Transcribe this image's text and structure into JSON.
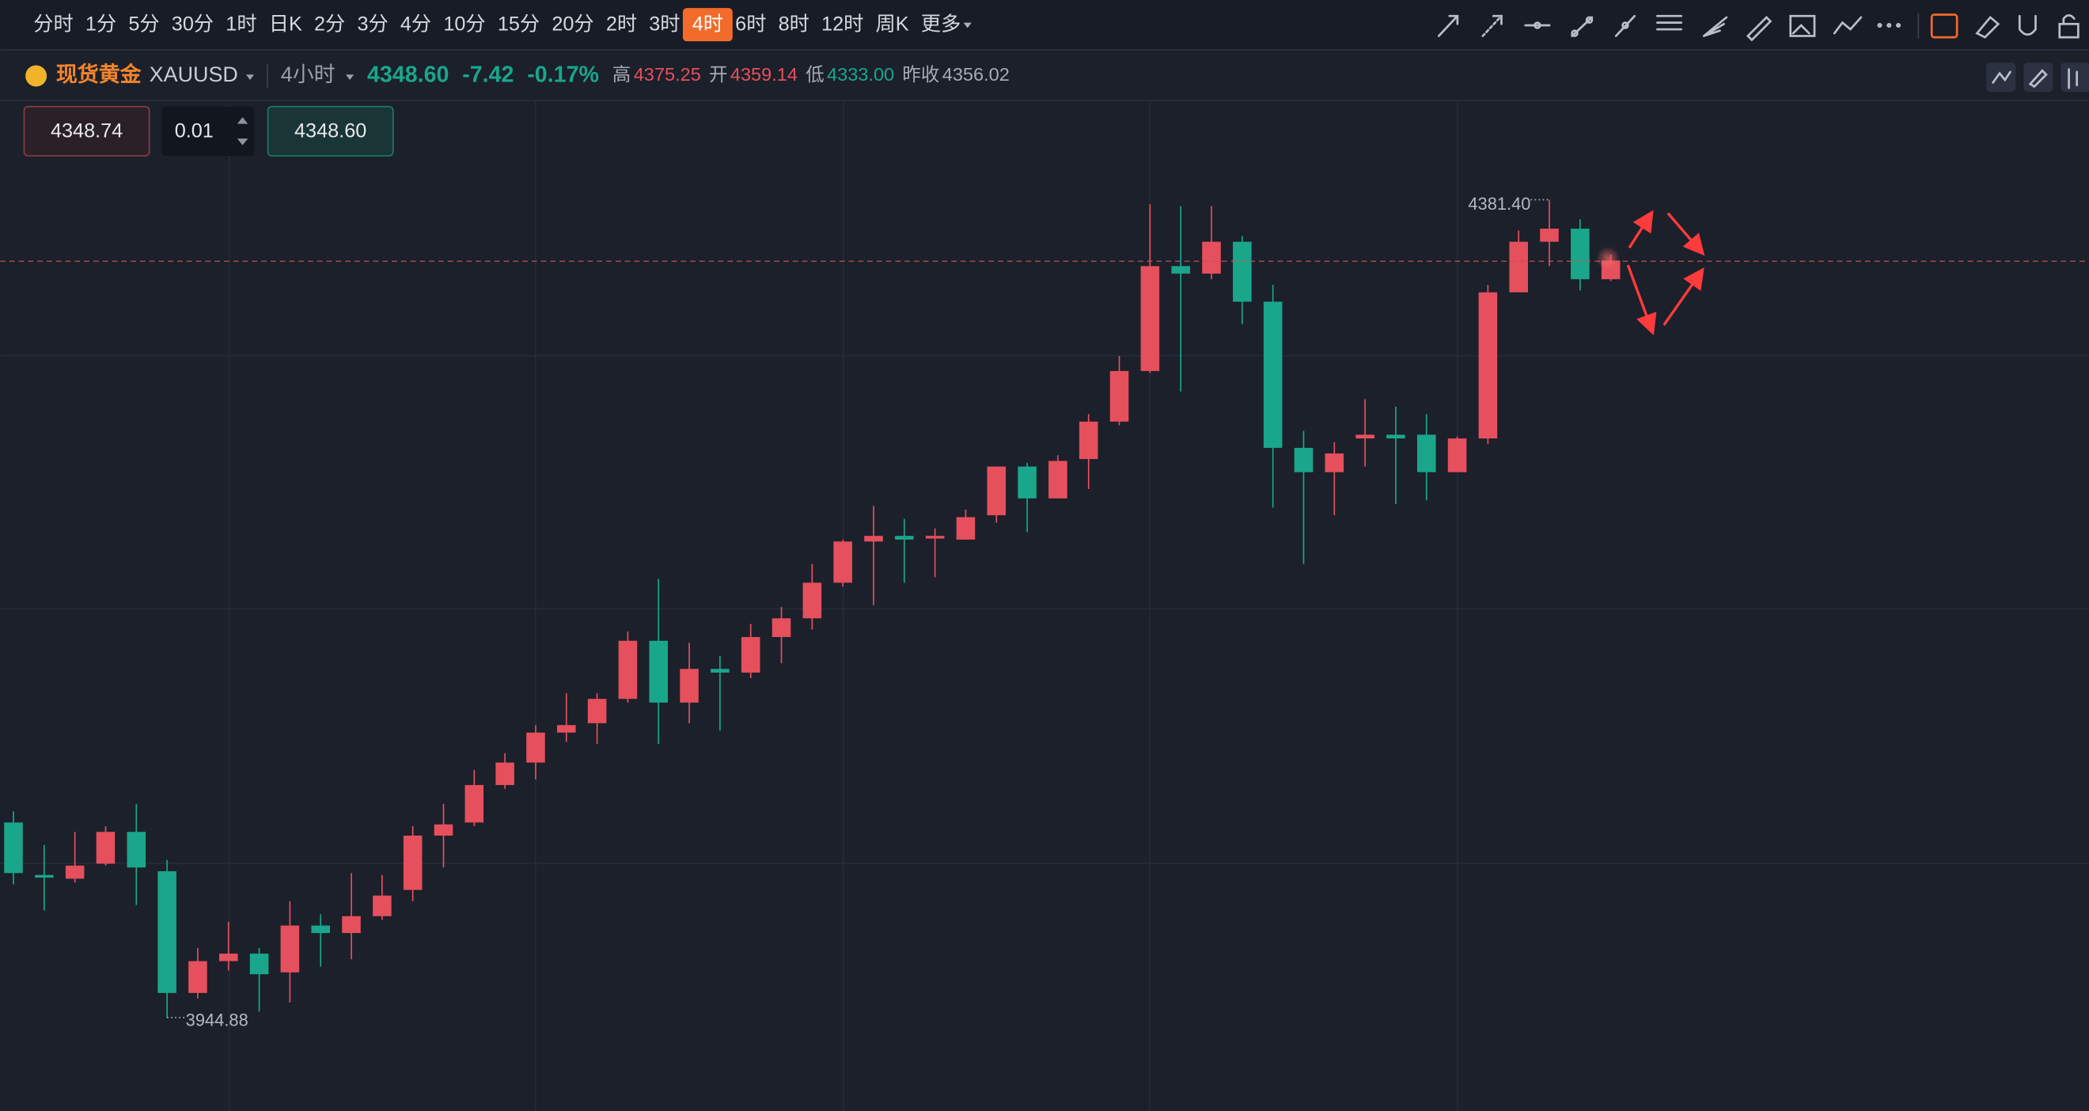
{
  "toolbar": {
    "intervals": [
      "分时",
      "1分",
      "5分",
      "30分",
      "1时",
      "日K",
      "2分",
      "3分",
      "4分",
      "10分",
      "15分",
      "20分",
      "2时",
      "3时",
      "4时",
      "6时",
      "8时",
      "12时",
      "周K",
      "更多"
    ],
    "active_index": 14
  },
  "quote": {
    "name": "现货黄金",
    "symbol": "XAUUSD",
    "period": "4小时",
    "change": "-7.42",
    "change_pct": "-0.17%",
    "stats": [
      {
        "label": "高",
        "value": "4375.25",
        "color": "#e5505c"
      },
      {
        "label": "开",
        "value": "4359.14",
        "color": "#e5505c"
      },
      {
        "label": "低",
        "value": "4333.00",
        "color": "#1aa68a"
      },
      {
        "label": "昨收",
        "value": "4356.02",
        "color": "#a6abb5"
      }
    ]
  },
  "trade": {
    "sell": "4348.74",
    "qty": "0.01",
    "buy": "4348.60"
  },
  "chart_data": {
    "type": "candlestick",
    "up_color": "#e5505c",
    "down_color": "#1aa68a",
    "ylim": [
      3895,
      4434
    ],
    "open": [
      4049,
      4021,
      4019,
      4027,
      4044,
      4023,
      3958,
      3975,
      3979,
      3969,
      3994,
      3990,
      3999,
      4013,
      4042,
      4049,
      4069,
      4081,
      4097,
      4102,
      4115,
      4146,
      4113,
      4131,
      4129,
      4148,
      4158,
      4177,
      4199,
      4202,
      4201,
      4200,
      4213,
      4239,
      4222,
      4243,
      4263,
      4290,
      4346,
      4342,
      4359,
      4327,
      4249,
      4236,
      4254,
      4256,
      4256,
      4236,
      4254,
      4332,
      4359,
      4366,
      4339
    ],
    "high": [
      4055,
      4037,
      4044,
      4047,
      4059,
      4029,
      3982,
      3996,
      3982,
      4007,
      4000,
      4022,
      4021,
      4047,
      4059,
      4077,
      4086,
      4101,
      4118,
      4118,
      4151,
      4179,
      4145,
      4138,
      4155,
      4164,
      4187,
      4200,
      4218,
      4211,
      4206,
      4216,
      4239,
      4241,
      4245,
      4267,
      4298,
      4379,
      4378,
      4378,
      4362,
      4336,
      4258,
      4252,
      4275,
      4271,
      4267,
      4255,
      4336,
      4365,
      4381.4,
      4371,
      4352
    ],
    "low": [
      4016,
      4002,
      4017,
      4026,
      4005,
      3944.88,
      3955,
      3970,
      3948,
      3953,
      3972,
      3976,
      3997,
      4007,
      4025,
      4047,
      4067,
      4072,
      4092,
      4091,
      4113,
      4091,
      4102,
      4098,
      4126,
      4134,
      4152,
      4175,
      4165,
      4177,
      4180,
      4200,
      4209,
      4204,
      4222,
      4227,
      4261,
      4289,
      4279,
      4339,
      4315,
      4217,
      4187,
      4213,
      4239,
      4219,
      4221,
      4236,
      4251,
      4332,
      4346,
      4333,
      4338
    ],
    "close": [
      4022,
      4020,
      4026,
      4044,
      4025,
      3958,
      3975,
      3979,
      3968,
      3994,
      3990,
      3999,
      4010,
      4042,
      4048,
      4069,
      4081,
      4097,
      4101,
      4115,
      4146,
      4113,
      4131,
      4129,
      4148,
      4158,
      4177,
      4199,
      4202,
      4200,
      4202,
      4212,
      4239,
      4222,
      4242,
      4263,
      4290,
      4346,
      4342,
      4359,
      4327,
      4249,
      4236,
      4246,
      4256,
      4254,
      4236,
      4254,
      4332,
      4359,
      4366,
      4339,
      4349
    ],
    "annotations": [
      {
        "value": 4381.4,
        "label": "4381.40"
      },
      {
        "value": 3944.88,
        "label": "3944.88"
      }
    ],
    "last_price": {
      "value": 4348.6,
      "label": "4348.60"
    }
  }
}
